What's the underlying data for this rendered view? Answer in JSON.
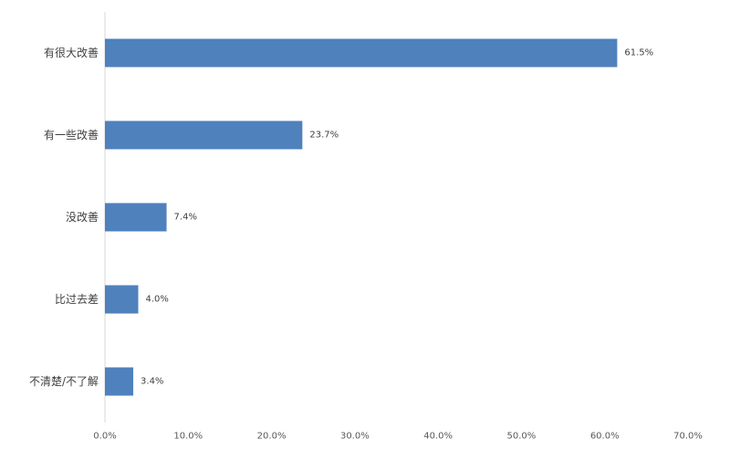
{
  "chart_data": {
    "type": "bar",
    "orientation": "horizontal",
    "categories": [
      "有很大改善",
      "有一些改善",
      "没改善",
      "比过去差",
      "不清楚/不了解"
    ],
    "values": [
      61.5,
      23.7,
      7.4,
      4.0,
      3.4
    ],
    "value_labels": [
      "61.5%",
      "23.7%",
      "7.4%",
      "4.0%",
      "3.4%"
    ],
    "x_ticks": [
      "0.0%",
      "10.0%",
      "20.0%",
      "30.0%",
      "40.0%",
      "50.0%",
      "60.0%",
      "70.0%"
    ],
    "xlim": [
      0,
      70
    ],
    "grid": false,
    "bar_color": "#4F81BD",
    "axis_color": "#D9D9D9"
  }
}
